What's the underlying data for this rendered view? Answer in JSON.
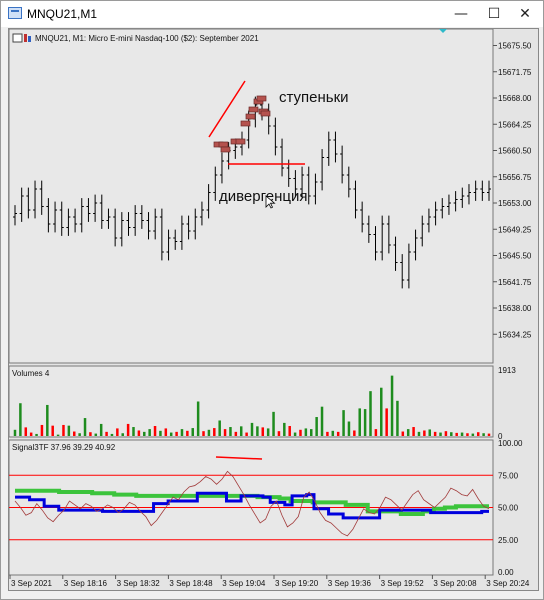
{
  "window": {
    "title": "MNQU21,M1",
    "minimize_glyph": "—",
    "maximize_glyph": "☐",
    "close_glyph": "✕"
  },
  "chart": {
    "header": "MNQU21, M1:  Micro E-mini Nasdaq-100 ($2): September 2021",
    "annotations": {
      "steps": "ступеньки",
      "divergence": "дивергенция"
    },
    "colors": {
      "bull_bar": "#000000",
      "brick": "#b5524e",
      "red_line": "#ff0000",
      "green_line": "#3cc43c",
      "blue_line": "#0000dd",
      "brown_line": "#a23b3b",
      "volume_up": "#1e8c1e",
      "volume_down": "#ff0000"
    }
  },
  "chart_data": [
    {
      "type": "ohlc",
      "title": "MNQU21, M1:  Micro E-mini Nasdaq-100 ($2): September 2021",
      "y_ticks": [
        "15675.50",
        "15671.75",
        "15668.00",
        "15664.25",
        "15660.50",
        "15656.75",
        "15653.00",
        "15649.25",
        "15645.50",
        "15641.75",
        "15638.00",
        "15634.25"
      ],
      "ylim": [
        15631.0,
        15677.0
      ],
      "close": [
        15651.5,
        15654.0,
        15652.0,
        15655.0,
        15652.5,
        15650.0,
        15652.0,
        15649.5,
        15651.0,
        15650.0,
        15652.5,
        15651.5,
        15653.0,
        15650.5,
        15651.0,
        15648.0,
        15650.5,
        15649.5,
        15651.5,
        15650.5,
        15649.0,
        15651.0,
        15646.0,
        15648.0,
        15647.5,
        15650.0,
        15649.0,
        15651.0,
        15652.0,
        15654.5,
        15657.0,
        15659.0,
        15660.5,
        15661.0,
        15662.0,
        15665.0,
        15667.0,
        15666.0,
        15664.0,
        15661.0,
        15658.0,
        15656.5,
        15655.0,
        15657.0,
        15654.0,
        15656.0,
        15659.5,
        15662.0,
        15660.0,
        15657.0,
        15655.0,
        15652.0,
        15650.0,
        15648.5,
        15646.0,
        15650.0,
        15647.0,
        15644.5,
        15642.0,
        15646.0,
        15648.0,
        15650.0,
        15651.0,
        15652.0,
        15652.5,
        15653.0,
        15653.5,
        15654.0,
        15654.5,
        15655.0,
        15654.5,
        15655.0
      ]
    },
    {
      "type": "bar",
      "title": "Volumes 4",
      "y_ticks": [
        "1913",
        "0"
      ],
      "ylim": [
        0,
        1913
      ],
      "values": [
        180,
        950,
        250,
        100,
        60,
        320,
        900,
        300,
        40,
        320,
        300,
        130,
        80,
        520,
        110,
        70,
        350,
        120,
        60,
        220,
        80,
        350,
        260,
        160,
        120,
        200,
        290,
        150,
        220,
        100,
        120,
        200,
        150,
        230,
        1000,
        140,
        180,
        230,
        450,
        200,
        260,
        120,
        280,
        100,
        380,
        280,
        250,
        220,
        700,
        140,
        380,
        290,
        100,
        180,
        220,
        200,
        550,
        850,
        120,
        150,
        120,
        750,
        420,
        160,
        800,
        780,
        1300,
        200,
        1400,
        800,
        1750,
        1020,
        130,
        200,
        260,
        120,
        160,
        190,
        120,
        100,
        140,
        110,
        90,
        100,
        80,
        70,
        110,
        80,
        70
      ],
      "up": [
        true,
        true,
        false,
        false,
        true,
        false,
        true,
        false,
        true,
        false,
        true,
        false,
        true,
        true,
        false,
        true,
        true,
        false,
        true,
        false,
        true,
        false,
        true,
        false,
        true,
        true,
        false,
        true,
        false,
        true,
        false,
        true,
        false,
        true,
        true,
        false,
        true,
        false,
        true,
        false,
        true,
        false,
        true,
        false,
        true,
        true,
        false,
        true,
        true,
        false,
        true,
        false,
        true,
        false,
        true,
        true,
        true,
        true,
        false,
        true,
        false,
        true,
        true,
        false,
        true,
        true,
        true,
        false,
        true,
        false,
        true,
        true,
        false,
        true,
        false,
        true,
        false,
        true,
        false,
        true,
        false,
        true,
        false,
        true,
        false,
        true,
        false,
        true,
        false
      ]
    },
    {
      "type": "line",
      "title": "Signal3TF 37.96 39.29 40.92",
      "y_ticks": [
        "100.00",
        "75.00",
        "50.00",
        "25.00",
        "0.00"
      ],
      "ylim": [
        0,
        100
      ],
      "levels": [
        75,
        50,
        25
      ],
      "x_ticks": [
        "3 Sep 2021",
        "3 Sep 18:16",
        "3 Sep 18:32",
        "3 Sep 18:48",
        "3 Sep 19:04",
        "3 Sep 19:20",
        "3 Sep 19:36",
        "3 Sep 19:52",
        "3 Sep 20:08",
        "3 Sep 20:24"
      ],
      "series": [
        {
          "color": "#3cc43c",
          "values": [
            63,
            63,
            63,
            63,
            62,
            62,
            62,
            61,
            61,
            60,
            60,
            59,
            59,
            59,
            59,
            59,
            59,
            59,
            59,
            59,
            59,
            59,
            58,
            58,
            57,
            55,
            55,
            54,
            54,
            54,
            52,
            52,
            47,
            47,
            47,
            45,
            45,
            47,
            49,
            50,
            51,
            51,
            51,
            51
          ]
        },
        {
          "color": "#0000dd",
          "values": [
            58,
            58,
            56,
            56,
            51,
            51,
            48,
            48,
            48,
            48,
            48,
            48,
            47,
            47,
            47,
            47,
            47,
            47,
            47,
            53,
            53,
            55,
            55,
            55,
            55,
            61,
            61,
            61,
            61,
            55,
            55,
            59,
            59,
            59,
            58,
            54,
            54,
            52,
            59,
            59,
            60,
            49,
            49,
            45,
            45,
            42,
            42,
            42,
            42,
            42,
            48,
            48,
            48,
            48,
            48,
            48,
            48,
            46,
            46,
            46,
            46,
            46,
            46,
            46,
            47,
            47
          ]
        },
        {
          "color": "#a23b3b",
          "values": [
            55,
            50,
            44,
            46,
            53,
            48,
            42,
            39,
            44,
            48,
            55,
            52,
            49,
            53,
            51,
            47,
            49,
            52,
            50,
            46,
            49,
            54,
            52,
            47,
            43,
            36,
            40,
            46,
            52,
            58,
            56,
            62,
            66,
            67,
            70,
            74,
            72,
            68,
            72,
            78,
            74,
            67,
            60,
            52,
            45,
            38,
            41,
            51,
            55,
            44,
            35,
            38,
            43,
            58,
            62,
            55,
            46,
            40,
            38,
            34,
            30,
            28,
            33,
            41,
            49,
            46,
            45,
            50,
            58,
            56,
            52,
            48,
            54,
            60,
            63,
            56,
            53,
            50,
            54,
            58,
            65,
            63,
            60,
            59,
            64,
            57,
            51,
            49
          ]
        }
      ]
    }
  ]
}
